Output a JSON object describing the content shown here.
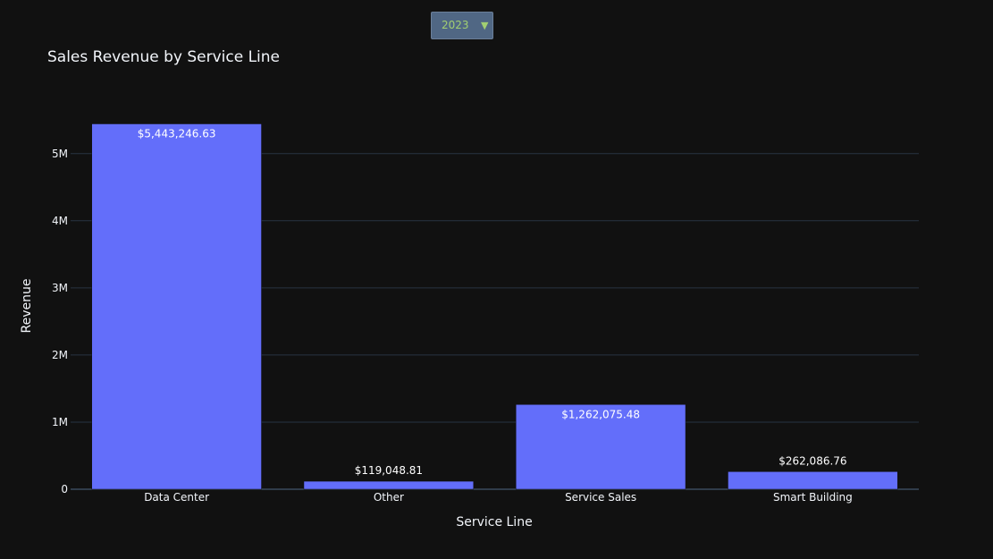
{
  "dropdown": {
    "selected": "2023",
    "arrow_icon": "triangle-down-icon"
  },
  "chart_data": {
    "type": "bar",
    "title": "Sales Revenue by Service Line",
    "xlabel": "Service Line",
    "ylabel": "Revenue",
    "categories": [
      "Data Center",
      "Other",
      "Service Sales",
      "Smart Building"
    ],
    "values": [
      5443246.63,
      119048.81,
      1262075.48,
      262086.76
    ],
    "data_labels": [
      "$5,443,246.63",
      "$119,048.81",
      "$1,262,075.48",
      "$262,086.76"
    ],
    "ylim": [
      0,
      5729733
    ],
    "yticks": [
      0,
      1000000,
      2000000,
      3000000,
      4000000,
      5000000
    ],
    "ytick_labels": [
      "0",
      "1M",
      "2M",
      "3M",
      "4M",
      "5M"
    ],
    "grid": true,
    "colors": {
      "background": "#111111",
      "bar": "#636efa",
      "grid": "#283442",
      "text": "#f2f5fa",
      "dropdown_bg": "#506784",
      "dropdown_text": "#a2cf72"
    }
  }
}
